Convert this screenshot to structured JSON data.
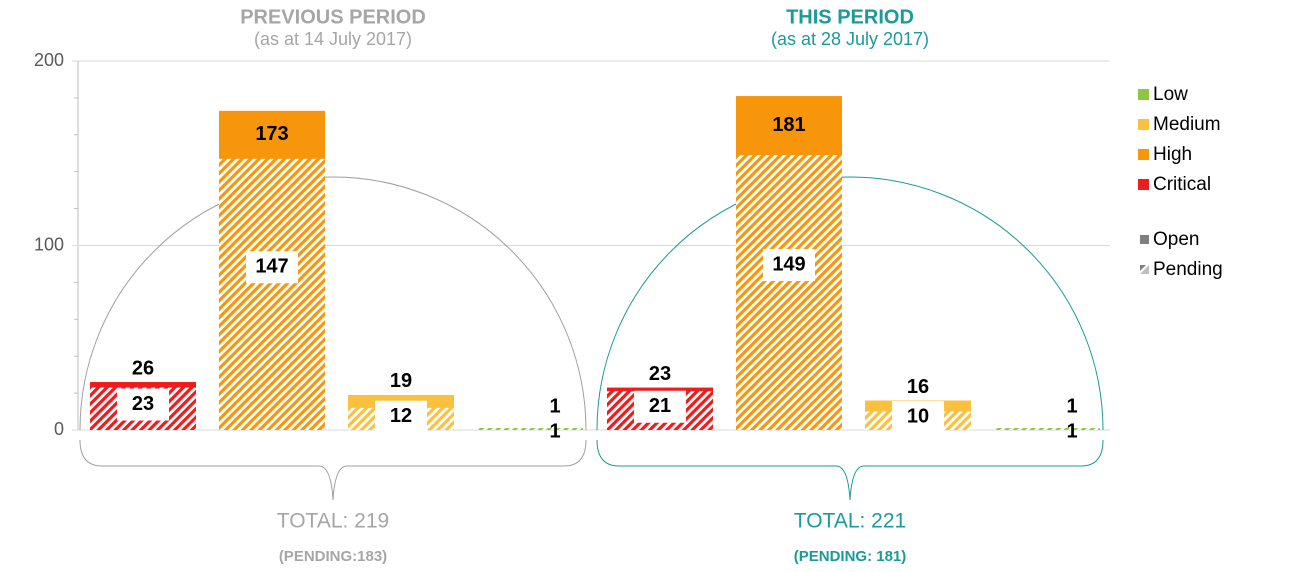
{
  "chart_data": {
    "type": "bar",
    "ylim": [
      0,
      200
    ],
    "yticks": [
      0,
      100,
      200
    ],
    "grid": true,
    "categories": [
      "Critical",
      "High",
      "Medium",
      "Low"
    ],
    "colors": [
      "#ee1c1c",
      "#f7960a",
      "#fbc040",
      "#8dc63f"
    ],
    "status": [
      "Open",
      "Pending"
    ],
    "periods": [
      {
        "title": "PREVIOUS PERIOD",
        "subtitle": "(as at 14 July 2017)",
        "color": "#a6a6a6",
        "arc_color": "#a0a0a0",
        "total_label": "TOTAL: 219",
        "pending_label": "(PENDING:183)",
        "totals": [
          26,
          173,
          19,
          1
        ],
        "pending": [
          23,
          147,
          12,
          1
        ]
      },
      {
        "title": "THIS PERIOD",
        "subtitle": "(as at 28 July 2017)",
        "color": "#1a9a9a",
        "arc_color": "#1a9a9a",
        "total_label": "TOTAL: 221",
        "pending_label": "(PENDING: 181)",
        "totals": [
          23,
          181,
          16,
          1
        ],
        "pending": [
          21,
          149,
          10,
          1
        ]
      }
    ]
  }
}
